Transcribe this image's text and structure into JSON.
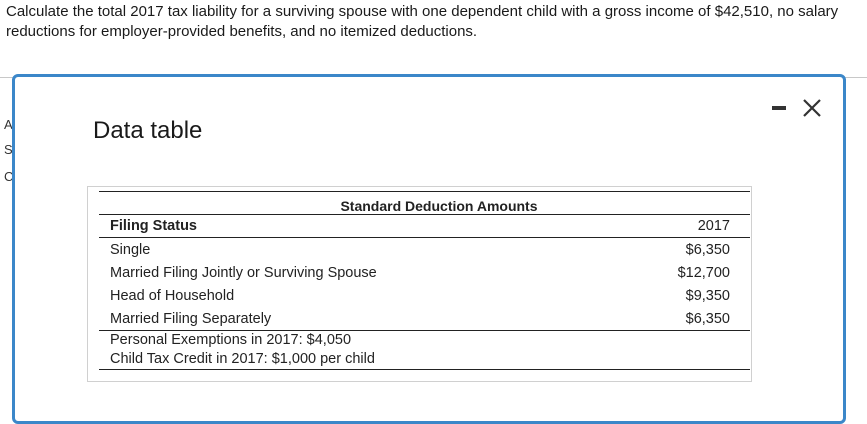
{
  "question": "Calculate the total 2017 tax liability for a surviving spouse with one dependent child with a gross income of $42,510, no salary reductions for employer-provided benefits, and no itemized deductions.",
  "background_glyphs": [
    "A",
    "S",
    "C"
  ],
  "modal": {
    "title": "Data table",
    "minimize_icon": "minimize-icon",
    "close_icon": "close-icon"
  },
  "table": {
    "caption": "Standard Deduction Amounts",
    "header": {
      "label": "Filing Status",
      "year": "2017"
    },
    "rows": [
      {
        "label": "Single",
        "value": "$6,350"
      },
      {
        "label": "Married Filing Jointly or Surviving Spouse",
        "value": "$12,700"
      },
      {
        "label": "Head of Household",
        "value": "$9,350"
      },
      {
        "label": "Married Filing Separately",
        "value": "$6,350"
      }
    ],
    "footnotes": [
      "Personal Exemptions in 2017: $4,050",
      "Child Tax Credit in 2017: $1,000 per child"
    ]
  },
  "colors": {
    "modal_border": "#3b87c9"
  }
}
